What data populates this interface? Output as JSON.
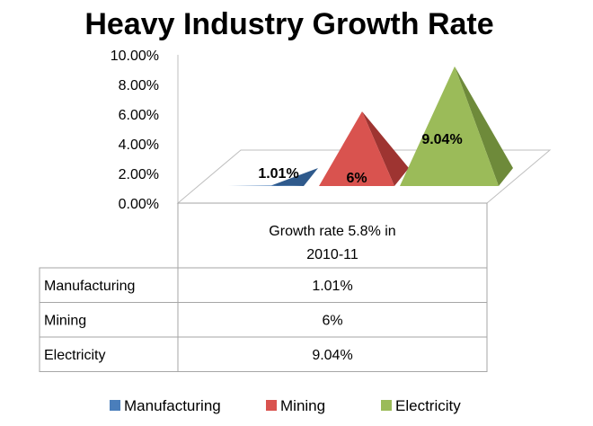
{
  "chart_data": {
    "type": "pyramid-3d-bar",
    "title": "Heavy Industry Growth Rate",
    "ylim": [
      0,
      10
    ],
    "yticks": [
      "0.00%",
      "2.00%",
      "4.00%",
      "6.00%",
      "8.00%",
      "10.00%"
    ],
    "ytick_values": [
      0,
      2,
      4,
      6,
      8,
      10
    ],
    "category_header": "Growth rate 5.8% in 2010-11",
    "category_header_lines": [
      "Growth rate 5.8% in",
      "2010-11"
    ],
    "series": [
      {
        "name": "Manufacturing",
        "value": 1.01,
        "label": "1.01%",
        "table_value": "1.01%",
        "color": "#4A7EBB",
        "dark": "#2F5A8C"
      },
      {
        "name": "Mining",
        "value": 6.0,
        "label": "6%",
        "table_value": "6%",
        "color": "#D9534F",
        "dark": "#9E3431"
      },
      {
        "name": "Electricity",
        "value": 9.04,
        "label": "9.04%",
        "table_value": "9.04%",
        "color": "#9BBB59",
        "dark": "#6E8A3A"
      }
    ],
    "legend_position": "bottom"
  }
}
